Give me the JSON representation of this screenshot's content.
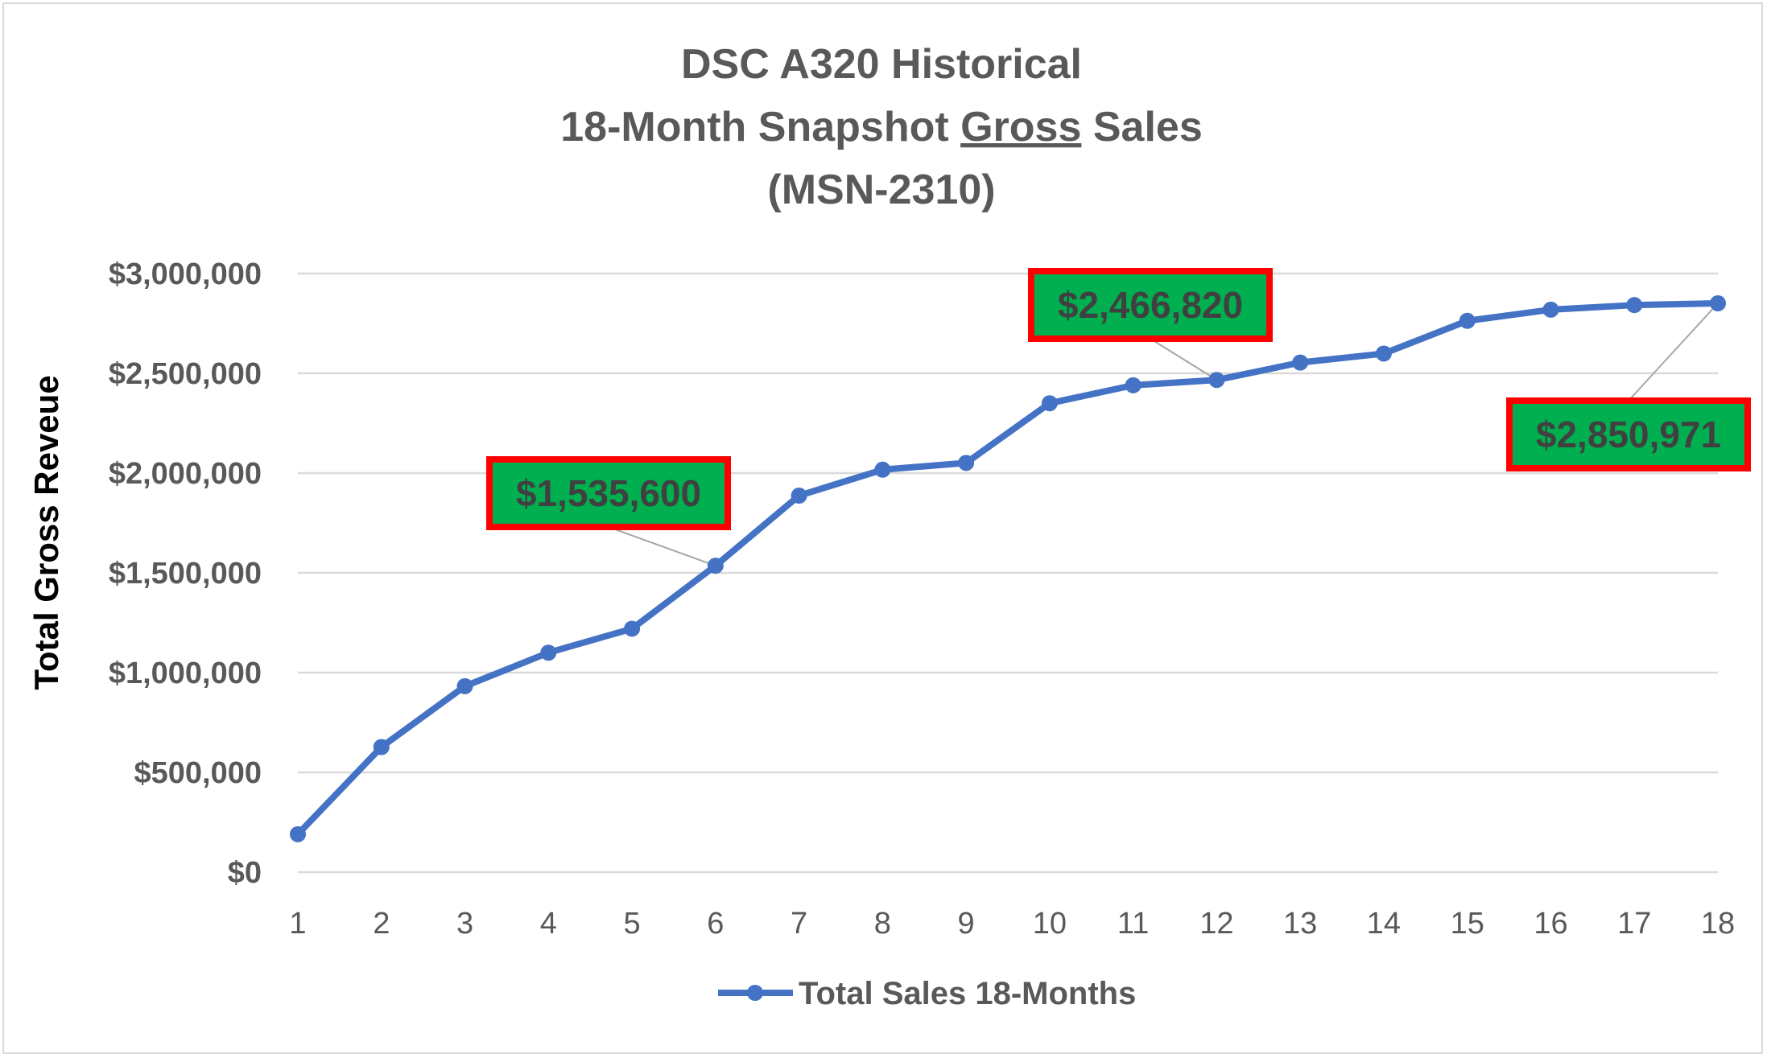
{
  "chart_data": {
    "type": "line",
    "title": [
      "DSC A320 Historical",
      "18-Month Snapshot Gross Sales",
      "(MSN-2310)"
    ],
    "title_underlined_word": "Gross",
    "xlabel": "",
    "ylabel": "Total Gross Reveue",
    "x": [
      1,
      2,
      3,
      4,
      5,
      6,
      7,
      8,
      9,
      10,
      11,
      12,
      13,
      14,
      15,
      16,
      17,
      18
    ],
    "series": [
      {
        "name": "Total Sales 18-Months",
        "color": "#4472c4",
        "values": [
          190000,
          627000,
          932000,
          1100000,
          1220000,
          1535600,
          1887000,
          2017000,
          2051000,
          2350000,
          2440000,
          2466820,
          2554000,
          2599000,
          2763000,
          2819000,
          2842000,
          2850971
        ]
      }
    ],
    "ylim": [
      0,
      3000000
    ],
    "yticks": [
      "$0",
      "$500,000",
      "$1,000,000",
      "$1,500,000",
      "$2,000,000",
      "$2,500,000",
      "$3,000,000"
    ],
    "ytick_values": [
      0,
      500000,
      1000000,
      1500000,
      2000000,
      2500000,
      3000000
    ],
    "grid": true,
    "legend_position": "bottom",
    "data_labels": [
      {
        "x": 6,
        "text": "$1,535,600"
      },
      {
        "x": 12,
        "text": "$2,466,820"
      },
      {
        "x": 18,
        "text": "$2,850,971"
      }
    ],
    "data_label_fill": "#00b050",
    "data_label_border": "#ff0000"
  }
}
